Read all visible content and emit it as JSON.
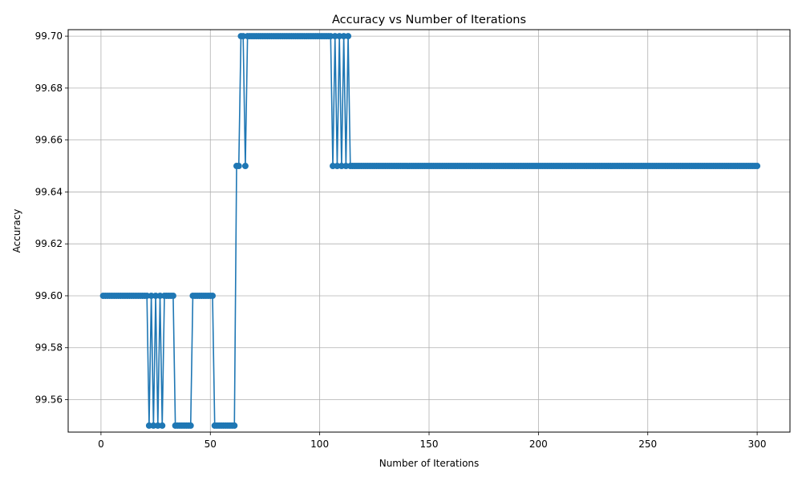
{
  "chart_data": {
    "type": "line",
    "title": "Accuracy vs Number of Iterations",
    "xlabel": "Number of Iterations",
    "ylabel": "Accuracy",
    "xlim": [
      -15,
      315
    ],
    "ylim": [
      99.5475,
      99.7025
    ],
    "xticks": [
      0,
      50,
      100,
      150,
      200,
      250,
      300
    ],
    "yticks": [
      99.56,
      99.58,
      99.6,
      99.62,
      99.64,
      99.66,
      99.68,
      99.7
    ],
    "ytick_decimals": 2,
    "grid": true,
    "marker": "circle",
    "colors": {
      "series": "#1f77b4",
      "grid": "#b0b0b0",
      "axis": "#000000"
    },
    "series": [
      {
        "values": [
          99.6,
          99.6,
          99.6,
          99.6,
          99.6,
          99.6,
          99.6,
          99.6,
          99.6,
          99.6,
          99.6,
          99.6,
          99.6,
          99.6,
          99.6,
          99.6,
          99.6,
          99.6,
          99.6,
          99.6,
          99.6,
          99.55,
          99.6,
          99.55,
          99.6,
          99.55,
          99.6,
          99.55,
          99.6,
          99.6,
          99.6,
          99.6,
          99.6,
          99.55,
          99.55,
          99.55,
          99.55,
          99.55,
          99.55,
          99.55,
          99.55,
          99.6,
          99.6,
          99.6,
          99.6,
          99.6,
          99.6,
          99.6,
          99.6,
          99.6,
          99.6,
          99.55,
          99.55,
          99.55,
          99.55,
          99.55,
          99.55,
          99.55,
          99.55,
          99.55,
          99.55,
          99.65,
          99.65,
          99.7,
          99.7,
          99.65,
          99.7,
          99.7,
          99.7,
          99.7,
          99.7,
          99.7,
          99.7,
          99.7,
          99.7,
          99.7,
          99.7,
          99.7,
          99.7,
          99.7,
          99.7,
          99.7,
          99.7,
          99.7,
          99.7,
          99.7,
          99.7,
          99.7,
          99.7,
          99.7,
          99.7,
          99.7,
          99.7,
          99.7,
          99.7,
          99.7,
          99.7,
          99.7,
          99.7,
          99.7,
          99.7,
          99.7,
          99.7,
          99.7,
          99.7,
          99.65,
          99.7,
          99.65,
          99.7,
          99.65,
          99.7,
          99.65,
          99.7,
          99.65,
          99.65,
          99.65,
          99.65,
          99.65,
          99.65,
          99.65,
          99.65,
          99.65,
          99.65,
          99.65,
          99.65,
          99.65,
          99.65,
          99.65,
          99.65,
          99.65,
          99.65,
          99.65,
          99.65,
          99.65,
          99.65,
          99.65,
          99.65,
          99.65,
          99.65,
          99.65,
          99.65,
          99.65,
          99.65,
          99.65,
          99.65,
          99.65,
          99.65,
          99.65,
          99.65,
          99.65,
          99.65,
          99.65,
          99.65,
          99.65,
          99.65,
          99.65,
          99.65,
          99.65,
          99.65,
          99.65,
          99.65,
          99.65,
          99.65,
          99.65,
          99.65,
          99.65,
          99.65,
          99.65,
          99.65,
          99.65,
          99.65,
          99.65,
          99.65,
          99.65,
          99.65,
          99.65,
          99.65,
          99.65,
          99.65,
          99.65,
          99.65,
          99.65,
          99.65,
          99.65,
          99.65,
          99.65,
          99.65,
          99.65,
          99.65,
          99.65,
          99.65,
          99.65,
          99.65,
          99.65,
          99.65,
          99.65,
          99.65,
          99.65,
          99.65,
          99.65,
          99.65,
          99.65,
          99.65,
          99.65,
          99.65,
          99.65,
          99.65,
          99.65,
          99.65,
          99.65,
          99.65,
          99.65,
          99.65,
          99.65,
          99.65,
          99.65,
          99.65,
          99.65,
          99.65,
          99.65,
          99.65,
          99.65,
          99.65,
          99.65,
          99.65,
          99.65,
          99.65,
          99.65,
          99.65,
          99.65,
          99.65,
          99.65,
          99.65,
          99.65,
          99.65,
          99.65,
          99.65,
          99.65,
          99.65,
          99.65,
          99.65,
          99.65,
          99.65,
          99.65,
          99.65,
          99.65,
          99.65,
          99.65,
          99.65,
          99.65,
          99.65,
          99.65,
          99.65,
          99.65,
          99.65,
          99.65,
          99.65,
          99.65,
          99.65,
          99.65,
          99.65,
          99.65,
          99.65,
          99.65,
          99.65,
          99.65,
          99.65,
          99.65,
          99.65,
          99.65,
          99.65,
          99.65,
          99.65,
          99.65,
          99.65,
          99.65,
          99.65,
          99.65,
          99.65,
          99.65,
          99.65,
          99.65,
          99.65,
          99.65,
          99.65,
          99.65,
          99.65,
          99.65,
          99.65,
          99.65,
          99.65,
          99.65,
          99.65,
          99.65,
          99.65,
          99.65,
          99.65,
          99.65,
          99.65,
          99.65
        ]
      }
    ]
  }
}
